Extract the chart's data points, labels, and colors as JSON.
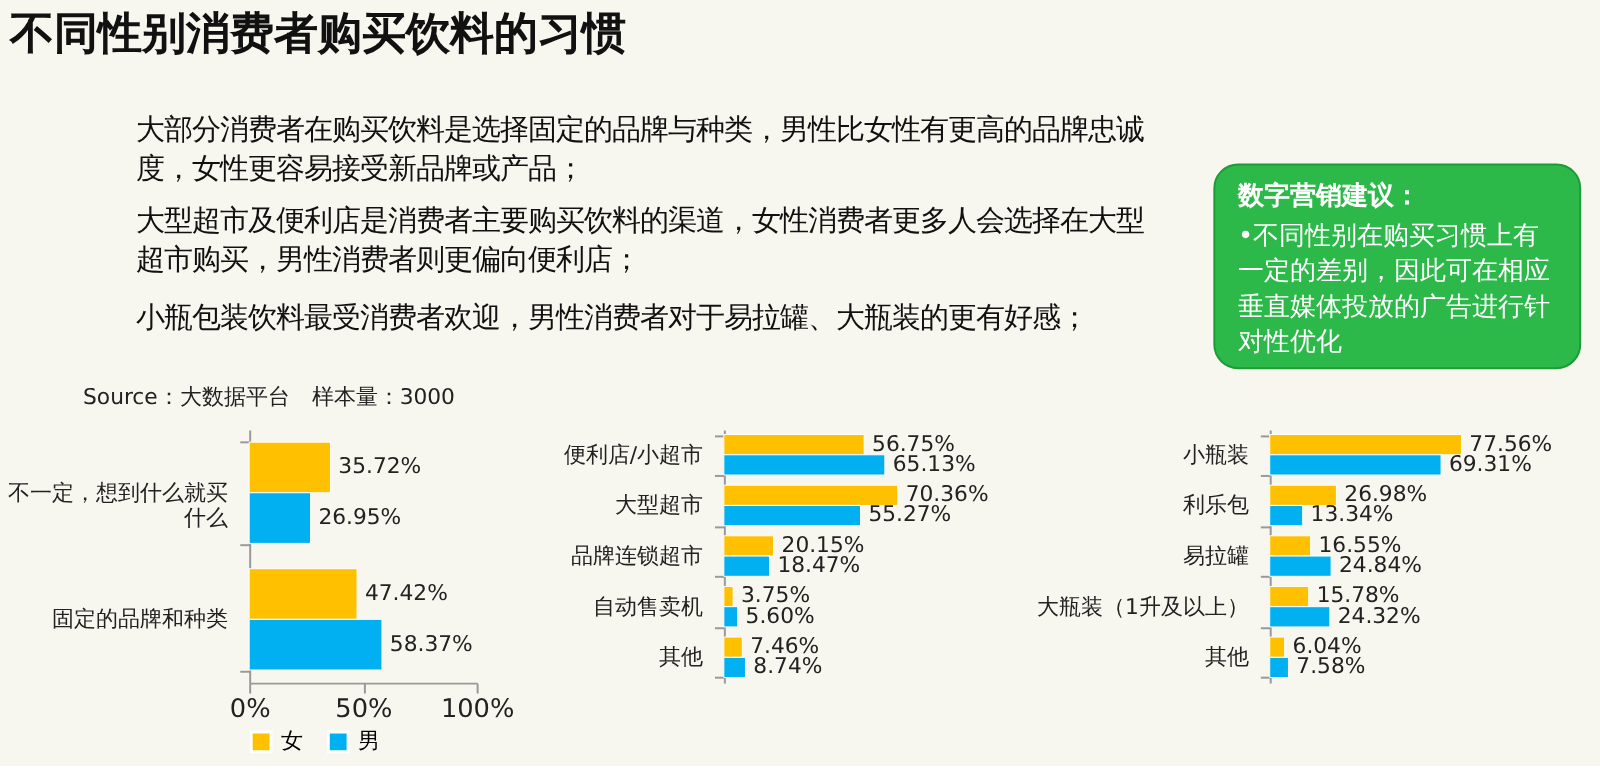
{
  "chart_data": [
    {
      "type": "bar",
      "orientation": "horizontal",
      "title": "不同性别消费者购买饮料的习惯",
      "annotations": [
        "大部分消费者在购买饮料是选择固定的品牌与种类，男性比女性有更高的品牌忠诚度，女性更容易接受新品牌或产品；",
        "大型超市及便利店是消费者主要购买饮料的渠道，女性消费者更多人会选择在大型超市购买，男性消费者则更偏向便利店；",
        "小瓶包装饮料最受消费者欢迎，男性消费者对于易拉罐、大瓶装的更有好感；",
        "数字营销建议：",
        "•不同性别在购买习惯上有一定的差别，因此可在相应垂直媒体投放的广告进行针对性优化",
        "Source：大数据平台　样本量：3000"
      ],
      "categories": [
        "不一定，想到什么就买什么",
        "固定的品牌和种类"
      ],
      "series": [
        {
          "name": "女",
          "color": "#ffc000",
          "values": [
            35.72,
            47.42
          ],
          "value_labels": [
            "35.72%",
            "47.42%"
          ]
        },
        {
          "name": "男",
          "color": "#00b0f0",
          "values": [
            26.95,
            58.37
          ],
          "value_labels": [
            "26.95%",
            "58.37%"
          ]
        }
      ],
      "xlim": [
        0,
        100
      ],
      "xticks": [
        {
          "value": 0,
          "label": "0%"
        },
        {
          "value": 50,
          "label": "50%"
        },
        {
          "value": 100,
          "label": "100%"
        }
      ],
      "legend": "bottom left",
      "grid": false
    },
    {
      "type": "bar",
      "orientation": "horizontal",
      "categories": [
        "便利店/小超市",
        "大型超市",
        "品牌连锁超市",
        "自动售卖机",
        "其他"
      ],
      "series": [
        {
          "color": "#ffc000",
          "values": [
            56.75,
            70.36,
            20.15,
            3.75,
            7.46
          ],
          "value_labels": [
            "56.75%",
            "70.36%",
            "20.15%",
            "3.75%",
            "7.46%"
          ]
        },
        {
          "color": "#00b0f0",
          "values": [
            65.13,
            55.27,
            18.47,
            5.6,
            8.74
          ],
          "value_labels": [
            "65.13%",
            "55.27%",
            "18.47%",
            "5.60%",
            "8.74%"
          ]
        }
      ],
      "tick_labels": "y",
      "grid": false
    },
    {
      "type": "bar",
      "orientation": "horizontal",
      "categories": [
        "小瓶装",
        "利乐包",
        "易拉罐",
        "大瓶装（1升及以上）",
        "其他"
      ],
      "series": [
        {
          "color": "#ffc000",
          "values": [
            77.56,
            26.98,
            16.55,
            15.78,
            6.04
          ],
          "value_labels": [
            "77.56%",
            "26.98%",
            "16.55%",
            "15.78%",
            "6.04%"
          ]
        },
        {
          "color": "#00b0f0",
          "values": [
            69.31,
            13.34,
            24.84,
            24.32,
            7.58
          ],
          "value_labels": [
            "69.31%",
            "13.34%",
            "24.84%",
            "24.32%",
            "7.58%"
          ]
        }
      ],
      "tick_labels": "y",
      "grid": false
    }
  ]
}
